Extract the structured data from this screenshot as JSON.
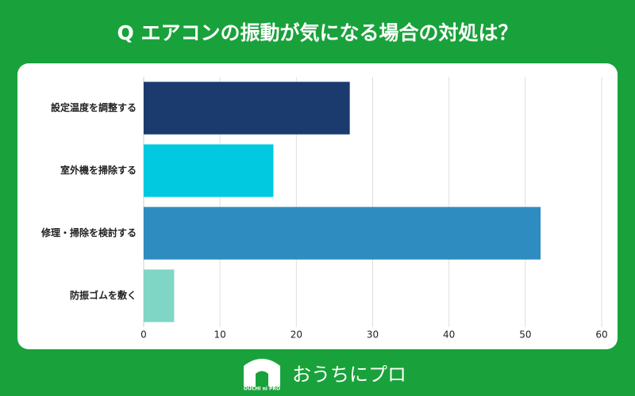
{
  "chart_data": {
    "type": "hbar",
    "title": "Q エアコンの振動が気になる場合の対処は？",
    "categories": [
      "設定温度を調整する",
      "室外機を掃除する",
      "修理・掃除を検討する",
      "防振ゴムを敷く"
    ],
    "values": [
      27,
      17,
      52,
      4
    ],
    "colors": [
      "#1b3a6e",
      "#00c9e0",
      "#2f8cc0",
      "#7fd6c5"
    ],
    "xlim": [
      0,
      60
    ],
    "xticks": [
      0,
      10,
      20,
      30,
      40,
      50,
      60
    ],
    "grid": true
  },
  "logo": {
    "name": "おうちにプロ",
    "mark": "OUCHI ni PRO"
  }
}
